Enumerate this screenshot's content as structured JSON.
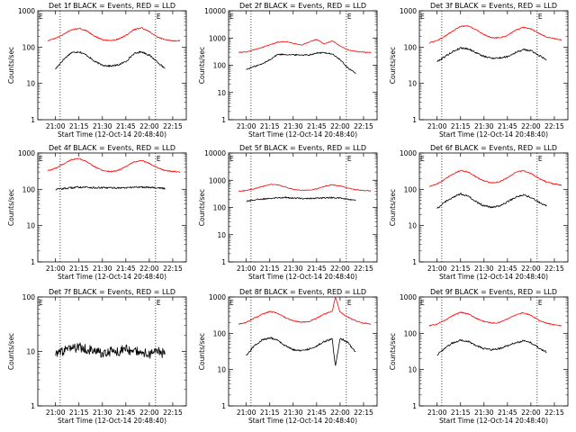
{
  "figure": {
    "start_time_label": "Start Time (12-Oct-14 20:48:40)"
  },
  "chart_data": [
    {
      "type": "line",
      "title": "Det 1f BLACK = Events, RED = LLD",
      "xlabel": "Start Time (12-Oct-14 20:48:40)",
      "ylabel": "Counts/sec",
      "yscale": "log",
      "ylim": [
        1,
        1000
      ],
      "x_ticks": [
        "21:00",
        "21:15",
        "21:30",
        "21:45",
        "22:00",
        "22:15"
      ],
      "y_ticks": [
        "1",
        "10",
        "100",
        "1000"
      ],
      "markers": [
        "E",
        "E"
      ],
      "colors": {
        "events": "#000000",
        "lld": "#ff0000"
      },
      "series": [
        {
          "name": "Events",
          "color": "#000000",
          "x": [
            "21:00",
            "21:05",
            "21:10",
            "21:15",
            "21:20",
            "21:25",
            "21:30",
            "21:35",
            "21:40",
            "21:45",
            "21:50",
            "21:55",
            "22:00",
            "22:05",
            "22:10"
          ],
          "values": [
            25,
            45,
            70,
            75,
            60,
            40,
            32,
            30,
            32,
            40,
            65,
            75,
            60,
            40,
            25
          ]
        },
        {
          "name": "LLD",
          "color": "#ff0000",
          "x": [
            "20:55",
            "21:00",
            "21:05",
            "21:10",
            "21:15",
            "21:20",
            "21:25",
            "21:30",
            "21:35",
            "21:40",
            "21:45",
            "21:50",
            "21:55",
            "22:00",
            "22:05",
            "22:10",
            "22:15",
            "22:20"
          ],
          "values": [
            150,
            175,
            220,
            300,
            330,
            280,
            200,
            160,
            150,
            165,
            210,
            300,
            340,
            270,
            190,
            160,
            150,
            150
          ]
        }
      ]
    },
    {
      "type": "line",
      "title": "Det 2f BLACK = Events, RED = LLD",
      "xlabel": "Start Time (12-Oct-14 20:48:40)",
      "ylabel": "Counts/sec",
      "yscale": "log",
      "ylim": [
        1,
        10000
      ],
      "x_ticks": [
        "21:00",
        "21:15",
        "21:30",
        "21:45",
        "22:00",
        "22:15"
      ],
      "y_ticks": [
        "1",
        "10",
        "100",
        "1000",
        "10000"
      ],
      "markers": [
        "E",
        "E"
      ],
      "colors": {
        "events": "#000000",
        "lld": "#ff0000"
      },
      "series": [
        {
          "name": "Events",
          "color": "#000000",
          "x": [
            "21:00",
            "21:05",
            "21:10",
            "21:15",
            "21:20",
            "21:25",
            "21:30",
            "21:35",
            "21:40",
            "21:45",
            "21:50",
            "21:55",
            "22:00",
            "22:05",
            "22:10"
          ],
          "values": [
            70,
            90,
            110,
            160,
            250,
            250,
            240,
            240,
            240,
            280,
            290,
            260,
            160,
            80,
            50
          ]
        },
        {
          "name": "LLD",
          "color": "#ff0000",
          "x": [
            "20:55",
            "21:00",
            "21:05",
            "21:10",
            "21:15",
            "21:20",
            "21:25",
            "21:30",
            "21:35",
            "21:40",
            "21:45",
            "21:50",
            "21:55",
            "22:00",
            "22:05",
            "22:10",
            "22:15",
            "22:20"
          ],
          "values": [
            300,
            310,
            370,
            450,
            560,
            700,
            750,
            650,
            550,
            700,
            900,
            600,
            800,
            500,
            370,
            320,
            300,
            290
          ]
        }
      ]
    },
    {
      "type": "line",
      "title": "Det 3f BLACK = Events, RED = LLD",
      "xlabel": "Start Time (12-Oct-14 20:48:40)",
      "ylabel": "Counts/sec",
      "yscale": "log",
      "ylim": [
        1,
        1000
      ],
      "x_ticks": [
        "21:00",
        "21:15",
        "21:30",
        "21:45",
        "22:00",
        "22:15"
      ],
      "y_ticks": [
        "1",
        "10",
        "100",
        "1000"
      ],
      "markers": [
        "E",
        "E"
      ],
      "colors": {
        "events": "#000000",
        "lld": "#ff0000"
      },
      "series": [
        {
          "name": "Events",
          "color": "#000000",
          "x": [
            "21:00",
            "21:05",
            "21:10",
            "21:15",
            "21:20",
            "21:25",
            "21:30",
            "21:35",
            "21:40",
            "21:45",
            "21:50",
            "21:55",
            "22:00",
            "22:05",
            "22:10"
          ],
          "values": [
            40,
            55,
            75,
            95,
            90,
            70,
            55,
            50,
            50,
            55,
            70,
            85,
            80,
            60,
            45
          ]
        },
        {
          "name": "LLD",
          "color": "#ff0000",
          "x": [
            "20:55",
            "21:00",
            "21:05",
            "21:10",
            "21:15",
            "21:20",
            "21:25",
            "21:30",
            "21:35",
            "21:40",
            "21:45",
            "21:50",
            "21:55",
            "22:00",
            "22:05",
            "22:10",
            "22:15",
            "22:20"
          ],
          "values": [
            130,
            150,
            200,
            280,
            370,
            380,
            300,
            220,
            180,
            180,
            210,
            290,
            350,
            320,
            240,
            190,
            170,
            160
          ]
        }
      ]
    },
    {
      "type": "line",
      "title": "Det 4f BLACK = Events, RED = LLD",
      "xlabel": "Start Time (12-Oct-14 20:48:40)",
      "ylabel": "Counts/sec",
      "yscale": "log",
      "ylim": [
        1,
        1000
      ],
      "x_ticks": [
        "21:00",
        "21:15",
        "21:30",
        "21:45",
        "22:00",
        "22:15"
      ],
      "y_ticks": [
        "1",
        "10",
        "100",
        "1000"
      ],
      "markers": [
        "E",
        "E"
      ],
      "colors": {
        "events": "#000000",
        "lld": "#ff0000"
      },
      "series": [
        {
          "name": "Events",
          "color": "#000000",
          "x": [
            "21:00",
            "21:05",
            "21:10",
            "21:15",
            "21:20",
            "21:25",
            "21:30",
            "21:35",
            "21:40",
            "21:45",
            "21:50",
            "21:55",
            "22:00",
            "22:05",
            "22:10"
          ],
          "values": [
            100,
            105,
            110,
            115,
            115,
            110,
            110,
            110,
            110,
            110,
            115,
            115,
            115,
            110,
            105
          ]
        },
        {
          "name": "LLD",
          "color": "#ff0000",
          "x": [
            "20:55",
            "21:00",
            "21:05",
            "21:10",
            "21:15",
            "21:20",
            "21:25",
            "21:30",
            "21:35",
            "21:40",
            "21:45",
            "21:50",
            "21:55",
            "22:00",
            "22:05",
            "22:10",
            "22:15",
            "22:20"
          ],
          "values": [
            320,
            380,
            500,
            650,
            700,
            580,
            420,
            330,
            310,
            330,
            420,
            560,
            620,
            520,
            400,
            330,
            310,
            300
          ]
        }
      ]
    },
    {
      "type": "line",
      "title": "Det 5f BLACK = Events, RED = LLD",
      "xlabel": "Start Time (12-Oct-14 20:48:40)",
      "ylabel": "Counts/sec",
      "yscale": "log",
      "ylim": [
        1,
        10000
      ],
      "x_ticks": [
        "21:00",
        "21:15",
        "21:30",
        "21:45",
        "22:00",
        "22:15"
      ],
      "y_ticks": [
        "1",
        "10",
        "100",
        "1000",
        "10000"
      ],
      "markers": [
        "E",
        "E"
      ],
      "colors": {
        "events": "#000000",
        "lld": "#ff0000"
      },
      "series": [
        {
          "name": "Events",
          "color": "#000000",
          "x": [
            "21:00",
            "21:05",
            "21:10",
            "21:15",
            "21:20",
            "21:25",
            "21:30",
            "21:35",
            "21:40",
            "21:45",
            "21:50",
            "21:55",
            "22:00",
            "22:05",
            "22:10"
          ],
          "values": [
            170,
            190,
            200,
            220,
            230,
            230,
            220,
            215,
            215,
            220,
            225,
            230,
            220,
            200,
            180
          ]
        },
        {
          "name": "LLD",
          "color": "#ff0000",
          "x": [
            "20:55",
            "21:00",
            "21:05",
            "21:10",
            "21:15",
            "21:20",
            "21:25",
            "21:30",
            "21:35",
            "21:40",
            "21:45",
            "21:50",
            "21:55",
            "22:00",
            "22:05",
            "22:10",
            "22:15",
            "22:20"
          ],
          "values": [
            400,
            420,
            480,
            580,
            700,
            680,
            560,
            460,
            430,
            430,
            480,
            600,
            680,
            620,
            520,
            450,
            420,
            410
          ]
        }
      ]
    },
    {
      "type": "line",
      "title": "Det 6f BLACK = Events, RED = LLD",
      "xlabel": "Start Time (12-Oct-14 20:48:40)",
      "ylabel": "Counts/sec",
      "yscale": "log",
      "ylim": [
        1,
        1000
      ],
      "x_ticks": [
        "21:00",
        "21:15",
        "21:30",
        "21:45",
        "22:00",
        "22:15"
      ],
      "y_ticks": [
        "1",
        "10",
        "100",
        "1000"
      ],
      "markers": [
        "E",
        "E"
      ],
      "colors": {
        "events": "#000000",
        "lld": "#ff0000"
      },
      "series": [
        {
          "name": "Events",
          "color": "#000000",
          "x": [
            "21:00",
            "21:05",
            "21:10",
            "21:15",
            "21:20",
            "21:25",
            "21:30",
            "21:35",
            "21:40",
            "21:45",
            "21:50",
            "21:55",
            "22:00",
            "22:05",
            "22:10"
          ],
          "values": [
            30,
            45,
            60,
            75,
            65,
            45,
            35,
            32,
            35,
            45,
            60,
            70,
            60,
            45,
            35
          ]
        },
        {
          "name": "LLD",
          "color": "#ff0000",
          "x": [
            "20:55",
            "21:00",
            "21:05",
            "21:10",
            "21:15",
            "21:20",
            "21:25",
            "21:30",
            "21:35",
            "21:40",
            "21:45",
            "21:50",
            "21:55",
            "22:00",
            "22:05",
            "22:10",
            "22:15",
            "22:20"
          ],
          "values": [
            120,
            140,
            190,
            260,
            330,
            300,
            220,
            170,
            150,
            160,
            210,
            290,
            330,
            270,
            200,
            160,
            140,
            130
          ]
        }
      ]
    },
    {
      "type": "line",
      "title": "Det 7f BLACK = Events, RED = LLD",
      "xlabel": "Start Time (12-Oct-14 20:48:40)",
      "ylabel": "Counts/sec",
      "yscale": "log",
      "ylim": [
        1,
        100
      ],
      "x_ticks": [
        "21:00",
        "21:15",
        "21:30",
        "21:45",
        "22:00",
        "22:15"
      ],
      "y_ticks": [
        "1",
        "10",
        "100"
      ],
      "markers": [
        "E",
        "E"
      ],
      "colors": {
        "events": "#000000",
        "lld": "#ff0000"
      },
      "series": [
        {
          "name": "Events",
          "color": "#000000",
          "x": [
            "21:00",
            "21:05",
            "21:10",
            "21:15",
            "21:20",
            "21:25",
            "21:30",
            "21:35",
            "21:40",
            "21:45",
            "21:50",
            "21:55",
            "22:00",
            "22:05",
            "22:10"
          ],
          "values": [
            9,
            10,
            11,
            12,
            11,
            10,
            9,
            10,
            10,
            11,
            10,
            10,
            9,
            10,
            9
          ]
        }
      ]
    },
    {
      "type": "line",
      "title": "Det 8f BLACK = Events, RED = LLD",
      "xlabel": "Start Time (12-Oct-14 20:48:40)",
      "ylabel": "Counts/sec",
      "yscale": "log",
      "ylim": [
        1,
        1000
      ],
      "x_ticks": [
        "21:00",
        "21:15",
        "21:30",
        "21:45",
        "22:00",
        "22:15"
      ],
      "y_ticks": [
        "1",
        "10",
        "100",
        "1000"
      ],
      "markers": [
        "E",
        "E"
      ],
      "colors": {
        "events": "#000000",
        "lld": "#ff0000"
      },
      "series": [
        {
          "name": "Events",
          "color": "#000000",
          "x": [
            "21:00",
            "21:05",
            "21:10",
            "21:15",
            "21:20",
            "21:25",
            "21:30",
            "21:35",
            "21:40",
            "21:45",
            "21:50",
            "21:55",
            "21:57",
            "22:00",
            "22:05",
            "22:10"
          ],
          "values": [
            25,
            45,
            65,
            75,
            65,
            45,
            35,
            33,
            37,
            45,
            60,
            70,
            12,
            75,
            55,
            30
          ]
        },
        {
          "name": "LLD",
          "color": "#ff0000",
          "x": [
            "20:55",
            "21:00",
            "21:05",
            "21:10",
            "21:15",
            "21:20",
            "21:25",
            "21:30",
            "21:35",
            "21:40",
            "21:45",
            "21:50",
            "21:55",
            "21:57",
            "22:00",
            "22:05",
            "22:10",
            "22:15",
            "22:20"
          ],
          "values": [
            180,
            200,
            260,
            330,
            400,
            360,
            270,
            220,
            200,
            210,
            260,
            340,
            400,
            1000,
            380,
            280,
            220,
            190,
            180
          ]
        }
      ]
    },
    {
      "type": "line",
      "title": "Det 9f BLACK = Events, RED = LLD",
      "xlabel": "Start Time (12-Oct-14 20:48:40)",
      "ylabel": "Counts/sec",
      "yscale": "log",
      "ylim": [
        1,
        1000
      ],
      "x_ticks": [
        "21:00",
        "21:15",
        "21:30",
        "21:45",
        "22:00",
        "22:15"
      ],
      "y_ticks": [
        "1",
        "10",
        "100",
        "1000"
      ],
      "markers": [
        "E",
        "E"
      ],
      "colors": {
        "events": "#000000",
        "lld": "#ff0000"
      },
      "series": [
        {
          "name": "Events",
          "color": "#000000",
          "x": [
            "21:00",
            "21:05",
            "21:10",
            "21:15",
            "21:20",
            "21:25",
            "21:30",
            "21:35",
            "21:40",
            "21:45",
            "21:50",
            "21:55",
            "22:00",
            "22:05",
            "22:10"
          ],
          "values": [
            25,
            40,
            55,
            65,
            60,
            45,
            38,
            35,
            38,
            45,
            55,
            62,
            55,
            40,
            30
          ]
        },
        {
          "name": "LLD",
          "color": "#ff0000",
          "x": [
            "20:55",
            "21:00",
            "21:05",
            "21:10",
            "21:15",
            "21:20",
            "21:25",
            "21:30",
            "21:35",
            "21:40",
            "21:45",
            "21:50",
            "21:55",
            "22:00",
            "22:05",
            "22:10",
            "22:15",
            "22:20"
          ],
          "values": [
            160,
            180,
            230,
            310,
            380,
            340,
            260,
            210,
            190,
            200,
            250,
            320,
            370,
            310,
            230,
            190,
            170,
            165
          ]
        }
      ]
    }
  ]
}
